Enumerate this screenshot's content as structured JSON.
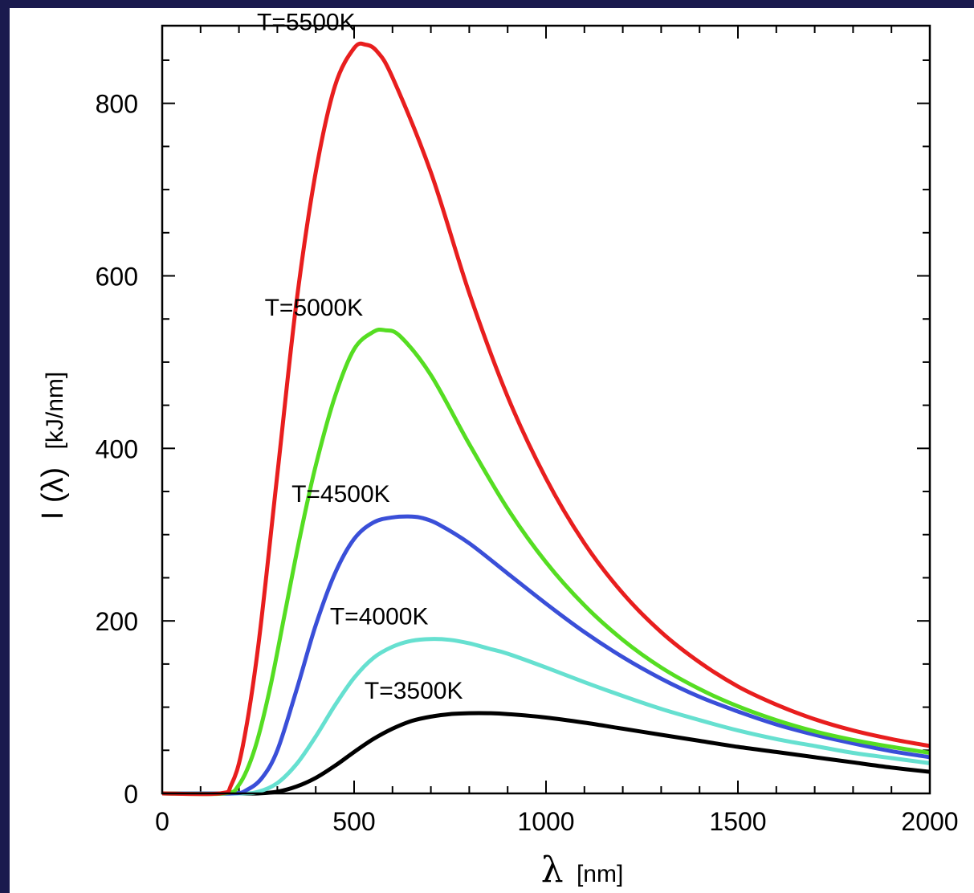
{
  "chart_data": {
    "type": "line",
    "title": "",
    "xlabel": "λ [nm]",
    "xlabel_symbol": "λ",
    "xlabel_unit": "[nm]",
    "ylabel": "I (λ) [kJ/nm]",
    "ylabel_symbol": "I (λ)",
    "ylabel_unit": "[kJ/nm]",
    "xlim": [
      0,
      2000
    ],
    "ylim": [
      0,
      890
    ],
    "xticks": [
      0,
      500,
      1000,
      1500,
      2000
    ],
    "yticks": [
      0,
      200,
      400,
      600,
      800
    ],
    "grid": false,
    "legend": "none",
    "series": [
      {
        "name": "T=3500K",
        "color": "#000000",
        "x": [
          0,
          200,
          250,
          300,
          350,
          400,
          450,
          500,
          550,
          600,
          650,
          700,
          750,
          800,
          850,
          900,
          1000,
          1100,
          1200,
          1300,
          1400,
          1500,
          1600,
          1700,
          1800,
          1900,
          2000
        ],
        "y": [
          0,
          0,
          0,
          2,
          8,
          18,
          32,
          48,
          63,
          75,
          84,
          89,
          92,
          93,
          93,
          92,
          88,
          82,
          75,
          68,
          61,
          54,
          48,
          42,
          36,
          30,
          25
        ]
      },
      {
        "name": "T=4000K",
        "color": "#66e0d0",
        "x": [
          0,
          200,
          250,
          300,
          350,
          400,
          450,
          500,
          550,
          600,
          650,
          700,
          750,
          800,
          850,
          900,
          1000,
          1100,
          1200,
          1300,
          1400,
          1500,
          1600,
          1700,
          1800,
          1900,
          2000
        ],
        "y": [
          0,
          0,
          2,
          12,
          34,
          66,
          102,
          134,
          157,
          170,
          177,
          179,
          178,
          174,
          168,
          162,
          146,
          129,
          113,
          98,
          85,
          73,
          63,
          55,
          47,
          41,
          35
        ]
      },
      {
        "name": "T=4500K",
        "color": "#3a4fd8",
        "x": [
          0,
          180,
          220,
          260,
          300,
          350,
          400,
          450,
          500,
          550,
          600,
          650,
          680,
          720,
          800,
          900,
          1000,
          1100,
          1200,
          1300,
          1400,
          1500,
          1600,
          1700,
          1800,
          1900,
          2000
        ],
        "y": [
          0,
          0,
          4,
          18,
          50,
          120,
          195,
          255,
          295,
          314,
          320,
          321,
          319,
          312,
          290,
          255,
          220,
          187,
          158,
          133,
          112,
          95,
          80,
          68,
          58,
          49,
          42
        ]
      },
      {
        "name": "T=5000K",
        "color": "#55dd22",
        "x": [
          0,
          160,
          200,
          240,
          280,
          320,
          360,
          400,
          450,
          500,
          550,
          580,
          620,
          700,
          800,
          900,
          1000,
          1100,
          1200,
          1300,
          1400,
          1500,
          1600,
          1700,
          1800,
          1900,
          2000
        ],
        "y": [
          0,
          0,
          10,
          50,
          120,
          210,
          300,
          380,
          460,
          515,
          535,
          537,
          530,
          485,
          405,
          330,
          268,
          218,
          178,
          146,
          121,
          101,
          85,
          72,
          62,
          54,
          47
        ]
      },
      {
        "name": "T=5500K",
        "color": "#e81e1e",
        "x": [
          0,
          150,
          180,
          210,
          250,
          300,
          350,
          400,
          450,
          500,
          530,
          560,
          600,
          700,
          800,
          900,
          1000,
          1100,
          1200,
          1300,
          1400,
          1500,
          1600,
          1700,
          1800,
          1900,
          2000
        ],
        "y": [
          0,
          0,
          10,
          55,
          170,
          370,
          570,
          720,
          820,
          864,
          868,
          860,
          830,
          720,
          580,
          460,
          365,
          290,
          232,
          187,
          152,
          124,
          103,
          86,
          73,
          63,
          55
        ]
      }
    ],
    "annotations": [
      {
        "text": "T=5500K",
        "x": 530,
        "y": 868
      },
      {
        "text": "T=5000K",
        "x": 550,
        "y": 537
      },
      {
        "text": "T=4500K",
        "x": 620,
        "y": 321
      },
      {
        "text": "T=4000K",
        "x": 720,
        "y": 179
      },
      {
        "text": "T=3500K",
        "x": 810,
        "y": 93
      }
    ]
  }
}
